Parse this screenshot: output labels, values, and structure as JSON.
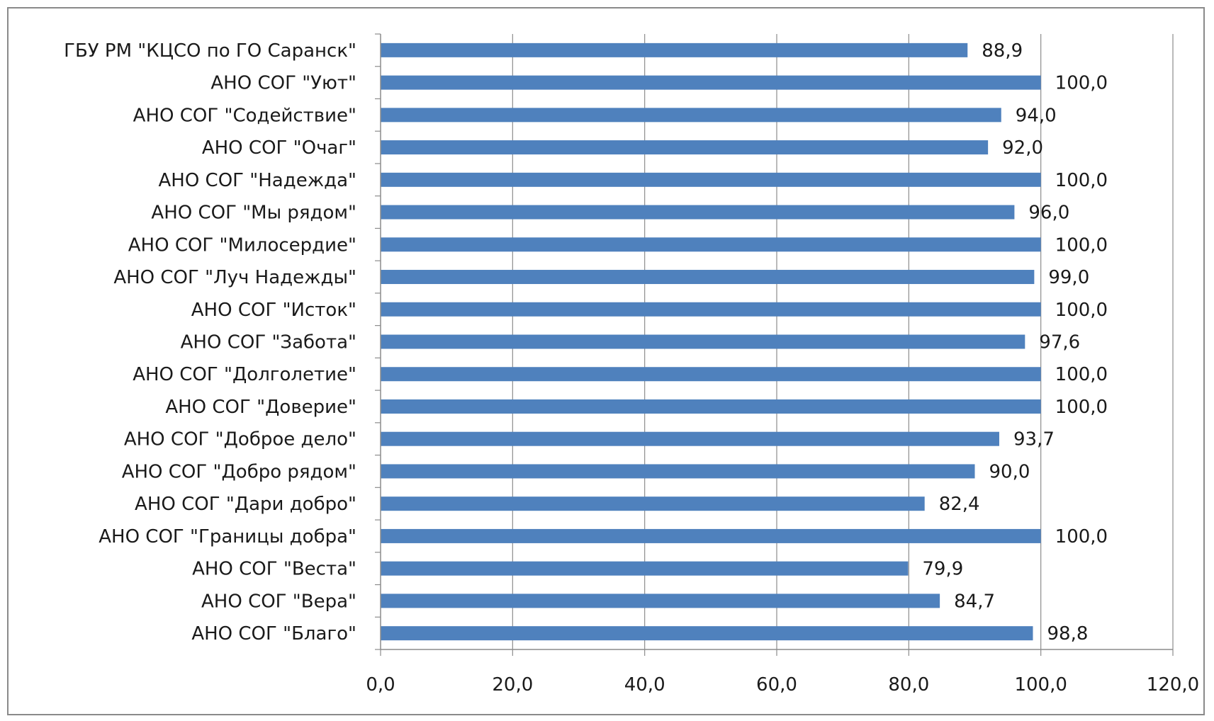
{
  "chart_data": {
    "type": "bar",
    "orientation": "horizontal",
    "title": "",
    "xlabel": "",
    "ylabel": "",
    "xlim": [
      0,
      120
    ],
    "ticks": [
      0,
      20,
      40,
      60,
      80,
      100,
      120
    ],
    "tick_labels": [
      "0,0",
      "20,0",
      "40,0",
      "60,0",
      "80,0",
      "100,0",
      "120,0"
    ],
    "grid": "vertical",
    "legend": "none",
    "bar_color": "#4f81bd",
    "categories": [
      "ГБУ РМ \"КЦСО  по ГО Саранск\"",
      "АНО СОГ \"Уют\"",
      "АНО СОГ \"Содействие\"",
      "АНО СОГ \"Очаг\"",
      "АНО СОГ \"Надежда\"",
      "АНО СОГ \"Мы рядом\"",
      "АНО СОГ \"Милосердие\"",
      "АНО СОГ \"Луч Надежды\"",
      "АНО СОГ \"Исток\"",
      "АНО СОГ \"Забота\"",
      "АНО СОГ \"Долголетие\"",
      "АНО СОГ \"Доверие\"",
      "АНО СОГ \"Доброе дело\"",
      "АНО СОГ \"Добро рядом\"",
      "АНО СОГ \"Дари добро\"",
      "АНО СОГ \"Границы добра\"",
      "АНО СОГ \"Веста\"",
      "АНО СОГ \"Вера\"",
      "АНО СОГ \"Благо\""
    ],
    "values": [
      88.9,
      100.0,
      94.0,
      92.0,
      100.0,
      96.0,
      100.0,
      99.0,
      100.0,
      97.6,
      100.0,
      100.0,
      93.7,
      90.0,
      82.4,
      100.0,
      79.9,
      84.7,
      98.8
    ],
    "value_labels": [
      "88,9",
      "100,0",
      "94,0",
      "92,0",
      "100,0",
      "96,0",
      "100,0",
      "99,0",
      "100,0",
      "97,6",
      "100,0",
      "100,0",
      "93,7",
      "90,0",
      "82,4",
      "100,0",
      "79,9",
      "84,7",
      "98,8"
    ]
  }
}
